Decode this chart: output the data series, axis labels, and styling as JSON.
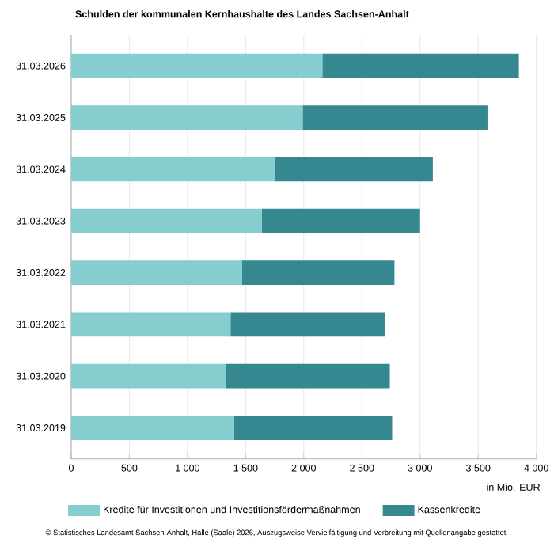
{
  "chart_data": {
    "type": "bar",
    "orientation": "horizontal",
    "stacked": true,
    "title": "Schulden der kommunalen Kernhaushalte des Landes Sachsen-Anhalt",
    "xlabel": "in Mio. EUR",
    "categories": [
      "31.03.2026",
      "31.03.2025",
      "31.03.2024",
      "31.03.2023",
      "31.03.2022",
      "31.03.2021",
      "31.03.2020",
      "31.03.2019"
    ],
    "series": [
      {
        "name": "Kredite für Investitionen und Investitionsfördermaßnahmen",
        "color": "#86cdd0",
        "values": [
          2160,
          1990,
          1750,
          1640,
          1470,
          1370,
          1330,
          1400
        ]
      },
      {
        "name": "Kassenkredite",
        "color": "#368890",
        "values": [
          1690,
          1590,
          1360,
          1360,
          1310,
          1330,
          1410,
          1360
        ]
      }
    ],
    "xlim": [
      0,
      4000
    ],
    "xticks": [
      0,
      500,
      {
        "value": 1000,
        "label": "1 000"
      },
      {
        "value": 1500,
        "label": "1 500"
      },
      {
        "value": 2000,
        "label": "2 000"
      },
      {
        "value": 2500,
        "label": "2 500"
      },
      {
        "value": 3000,
        "label": "3 000"
      },
      {
        "value": 3500,
        "label": "3 500"
      },
      {
        "value": 4000,
        "label": "4 000"
      }
    ],
    "grid": "x",
    "legend": "bottom",
    "annotations": [
      "© Statistisches Landesamt Sachsen-Anhalt, Halle (Saale) 2026, Auszugsweise Vervielfältigung und Verbreitung mit Quellenangabe gestattet."
    ]
  }
}
